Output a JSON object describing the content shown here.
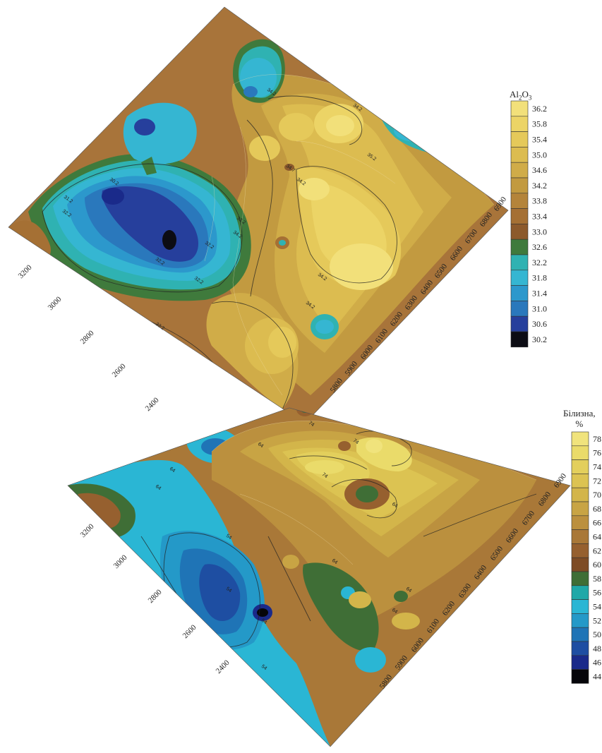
{
  "maps": [
    {
      "id": "al2o3",
      "legend_title_main": "Al",
      "legend_title_sub1": "2",
      "legend_title_mid": "O",
      "legend_title_sub2": "3",
      "legend_values": [
        "36.2",
        "35.8",
        "35.4",
        "35.0",
        "34.6",
        "34.2",
        "33.8",
        "33.4",
        "33.0",
        "32.6",
        "32.2",
        "31.8",
        "31.4",
        "31.0",
        "30.6",
        "30.2"
      ],
      "legend_colors": [
        "#f2e07a",
        "#ecd466",
        "#e5c95a",
        "#dcbc50",
        "#d0ac48",
        "#c29a40",
        "#b4843a",
        "#a57034",
        "#8c5a2c",
        "#3f7a3c",
        "#2fb2b2",
        "#35b6d2",
        "#2c98cc",
        "#2a78bc",
        "#263f9c",
        "#0c0c14"
      ],
      "axis_left": [
        "3200",
        "3000",
        "2800",
        "2600",
        "2400"
      ],
      "axis_right": [
        "6900",
        "6800",
        "6700",
        "6600",
        "6500",
        "6400",
        "6300",
        "6200",
        "6100",
        "6000",
        "5900",
        "5800"
      ],
      "contour_labels": [
        "34.2",
        "34.2",
        "34.2",
        "34.2",
        "34.7",
        "35.2",
        "31.2",
        "32.2",
        "32.2",
        "32.2",
        "33.2",
        "30.2",
        "32.2",
        "33.2",
        "34.2",
        "34.2"
      ]
    },
    {
      "id": "bilyzna",
      "legend_title_main": "Білизна,",
      "legend_title_unit": "%",
      "legend_values": [
        "78",
        "76",
        "74",
        "72",
        "70",
        "68",
        "66",
        "64",
        "62",
        "60",
        "58",
        "56",
        "54",
        "52",
        "50",
        "48",
        "46",
        "44"
      ],
      "legend_colors": [
        "#f0e37c",
        "#eadb6a",
        "#e3cf5c",
        "#dcc352",
        "#d3b54a",
        "#c8a444",
        "#bb903e",
        "#a97838",
        "#96602f",
        "#7e4c25",
        "#3f6e36",
        "#20a8a8",
        "#2ab6d4",
        "#2499c8",
        "#1f74b6",
        "#1e4ea2",
        "#1a2a8a",
        "#05050a"
      ],
      "axis_left": [
        "3200",
        "3000",
        "2800",
        "2600",
        "2400"
      ],
      "axis_right": [
        "6900",
        "6800",
        "6700",
        "6600",
        "6500",
        "6400",
        "6300",
        "6200",
        "6100",
        "6000",
        "5900",
        "5800"
      ],
      "contour_labels": [
        "74",
        "74",
        "74",
        "64",
        "64",
        "64",
        "64",
        "64",
        "54",
        "54",
        "54",
        "54",
        "64",
        "64"
      ]
    }
  ]
}
